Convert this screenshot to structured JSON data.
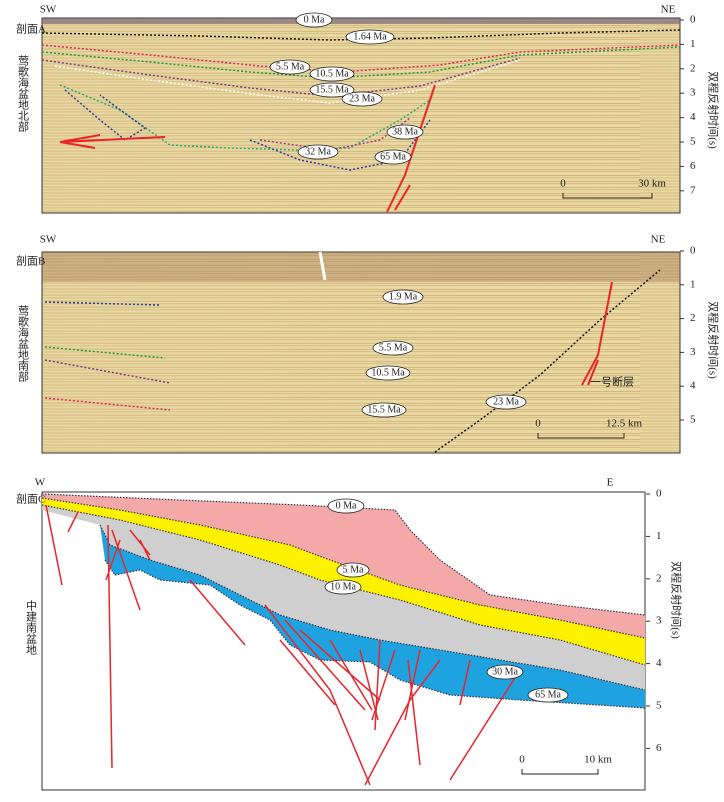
{
  "panels": [
    {
      "label": "剖面A",
      "left": "SW",
      "right": "NE",
      "region": "莺歌海盆地北部",
      "axis_title": "双程反射时间(s)",
      "ticks": [
        0,
        1,
        2,
        3,
        4,
        5,
        6,
        7
      ],
      "scale": [
        "0",
        "30 km"
      ],
      "ages": [
        "0 Ma",
        "1.64 Ma",
        "5.5 Ma",
        "10.5 Ma",
        "15.5 Ma",
        "23 Ma",
        "38 Ma",
        "65 Ma",
        "32 Ma"
      ]
    },
    {
      "label": "剖面B",
      "left": "SW",
      "right": "NE",
      "region": "莺歌海盆地南部",
      "axis_title": "双程反射时间(s)",
      "ticks": [
        0,
        1,
        2,
        3,
        4,
        5
      ],
      "scale": [
        "0",
        "12.5 km"
      ],
      "ages": [
        "1.9 Ma",
        "5.5 Ma",
        "10.5 Ma",
        "15.5 Ma",
        "23 Ma"
      ],
      "fault": "一号断层"
    },
    {
      "label": "剖面C",
      "left": "W",
      "right": "E",
      "region": "中建南盆地",
      "axis_title": "双程反射时间(s)",
      "ticks": [
        0,
        1,
        2,
        3,
        4,
        5,
        6
      ],
      "scale": [
        "0",
        "10 km"
      ],
      "ages": [
        "0 Ma",
        "5 Ma",
        "10 Ma",
        "30 Ma",
        "65 Ma"
      ]
    }
  ]
}
